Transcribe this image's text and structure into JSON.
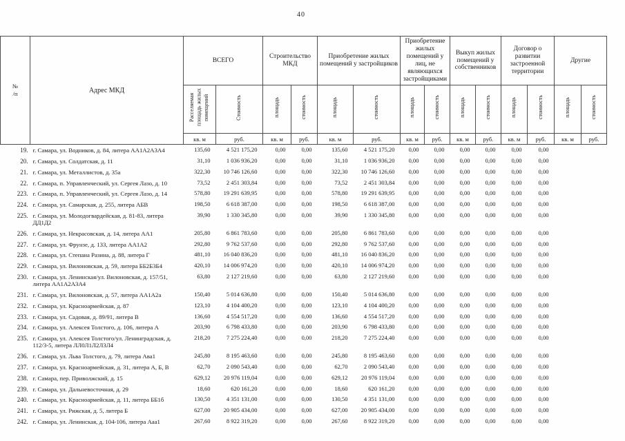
{
  "page": {
    "number": "40"
  },
  "table": {
    "headers": {
      "num": "№\n/п",
      "address": "Адрес МКД",
      "groups": [
        {
          "label": "ВСЕГО",
          "sub": [
            "Расселяемая площадь жилых помещений",
            "Стоимость"
          ]
        },
        {
          "label": "Строительство МКД",
          "sub": [
            "площадь",
            "стоимость"
          ]
        },
        {
          "label": "Приобретение жилых помещений у застройщиков",
          "sub": [
            "площадь",
            "стоимость"
          ]
        },
        {
          "label": "Приобретение жилых помещений у лиц, не являющихся застройщиками",
          "sub": [
            "площадь",
            "стоимость"
          ]
        },
        {
          "label": "Выкуп жилых помещений у собственников",
          "sub": [
            "площадь",
            "стоимость"
          ]
        },
        {
          "label": "Договор о развитии застроенной территории",
          "sub": [
            "площадь",
            "стоимость"
          ]
        },
        {
          "label": "Другие",
          "sub": [
            "площадь",
            "стоимость"
          ]
        }
      ],
      "units": [
        "кв. м",
        "руб."
      ]
    },
    "rows": [
      {
        "num": "19.",
        "address": "г. Самара, ул. Водников, д. 84, литера АА1А2А3А4",
        "values": [
          "135,60",
          "4 521 175,20",
          "0,00",
          "0,00",
          "135,60",
          "4 521 175,20",
          "0,00",
          "0,00",
          "0,00",
          "0,00",
          "0,00",
          "0,00",
          "",
          ""
        ]
      },
      {
        "num": "20.",
        "address": "г. Самара, ул. Солдатская, д. 11",
        "values": [
          "31,10",
          "1 036 936,20",
          "0,00",
          "0,00",
          "31,10",
          "1 036 936,20",
          "0,00",
          "0,00",
          "0,00",
          "0,00",
          "0,00",
          "0,00",
          "",
          ""
        ]
      },
      {
        "num": "21.",
        "address": "г. Самара, ул. Металлистов, д. 35а",
        "values": [
          "322,30",
          "10 746 126,60",
          "0,00",
          "0,00",
          "322,30",
          "10 746 126,60",
          "0,00",
          "0,00",
          "0,00",
          "0,00",
          "0,00",
          "0,00",
          "",
          ""
        ]
      },
      {
        "num": "22.",
        "address": "г. Самара, п. Управленческий, ул. Сергея Лазо, д. 10",
        "values": [
          "73,52",
          "2 451 303,84",
          "0,00",
          "0,00",
          "73,52",
          "2 451 303,84",
          "0,00",
          "0,00",
          "0,00",
          "0,00",
          "0,00",
          "0,00",
          "",
          ""
        ]
      },
      {
        "num": "223.",
        "address": "г. Самара, п. Управленческий, ул. Сергея Лазо, д. 14",
        "values": [
          "578,80",
          "19 291 639,95",
          "0,00",
          "0,00",
          "578,80",
          "19 291 639,95",
          "0,00",
          "0,00",
          "0,00",
          "0,00",
          "0,00",
          "0,00",
          "",
          ""
        ]
      },
      {
        "num": "224.",
        "address": "г. Самара, ул. Самарская, д. 255, литера АБВ",
        "values": [
          "198,50",
          "6 618 387,00",
          "0,00",
          "0,00",
          "198,50",
          "6 618 387,00",
          "0,00",
          "0,00",
          "0,00",
          "0,00",
          "0,00",
          "0,00",
          "",
          ""
        ]
      },
      {
        "num": "225.",
        "address": "г. Самара, ул. Молодогвардейская, д. 81-83, литера ДД1Д2",
        "values": [
          "39,90",
          "1 330 345,80",
          "0,00",
          "0,00",
          "39,90",
          "1 330 345,80",
          "0,00",
          "0,00",
          "0,00",
          "0,00",
          "0,00",
          "0,00",
          "",
          ""
        ]
      },
      {
        "num": "226.",
        "address": "г. Самара, ул. Некрасовская, д. 14, литера АА1",
        "values": [
          "205,80",
          "6 861 783,60",
          "0,00",
          "0,00",
          "205,80",
          "6 861 783,60",
          "0,00",
          "0,00",
          "0,00",
          "0,00",
          "0,00",
          "0,00",
          "",
          ""
        ]
      },
      {
        "num": "227.",
        "address": "г. Самара, ул. Фрунзе, д. 133, литера АА1А2",
        "values": [
          "292,80",
          "9 762 537,60",
          "0,00",
          "0,00",
          "292,80",
          "9 762 537,60",
          "0,00",
          "0,00",
          "0,00",
          "0,00",
          "0,00",
          "0,00",
          "",
          ""
        ]
      },
      {
        "num": "228.",
        "address": "г. Самара, ул. Степана Разина, д. 88, литера Г",
        "values": [
          "481,10",
          "16 040 836,20",
          "0,00",
          "0,00",
          "481,10",
          "16 040 836,20",
          "0,00",
          "0,00",
          "0,00",
          "0,00",
          "0,00",
          "0,00",
          "",
          ""
        ]
      },
      {
        "num": "229.",
        "address": "г. Самара, ул. Вилоновская, д. 59, литера ББ2Б3Б4",
        "values": [
          "420,10",
          "14 006 974,20",
          "0,00",
          "0,00",
          "420,10",
          "14 006 974,20",
          "0,00",
          "0,00",
          "0,00",
          "0,00",
          "0,00",
          "0,00",
          "",
          ""
        ]
      },
      {
        "num": "230.",
        "address": "г. Самара, ул. Ленинская/ул. Вилоновская, д. 157/51, литера АА1А2А3А4",
        "values": [
          "63,80",
          "2 127 219,60",
          "0,00",
          "0,00",
          "63,80",
          "2 127 219,60",
          "0,00",
          "0,00",
          "0,00",
          "0,00",
          "0,00",
          "0,00",
          "",
          ""
        ]
      },
      {
        "num": "231.",
        "address": "г. Самара, ул. Вилоновская, д. 57, литера АА1А2а",
        "values": [
          "150,40",
          "5 014 636,80",
          "0,00",
          "0,00",
          "150,40",
          "5 014 636,80",
          "0,00",
          "0,00",
          "0,00",
          "0,00",
          "0,00",
          "0,00",
          "",
          ""
        ]
      },
      {
        "num": "232.",
        "address": "г. Самара, ул. Красноармейская, д. 87",
        "values": [
          "123,10",
          "4 104 400,20",
          "0,00",
          "0,00",
          "123,10",
          "4 104 400,20",
          "0,00",
          "0,00",
          "0,00",
          "0,00",
          "0,00",
          "0,00",
          "",
          ""
        ]
      },
      {
        "num": "233.",
        "address": "г. Самара, ул. Садовая, д. 89/91, литера В",
        "values": [
          "136,60",
          "4 554 517,20",
          "0,00",
          "0,00",
          "136,60",
          "4 554 517,20",
          "0,00",
          "0,00",
          "0,00",
          "0,00",
          "0,00",
          "0,00",
          "",
          ""
        ]
      },
      {
        "num": "234.",
        "address": "г. Самара, ул. Алексея Толстого, д. 106, литера А",
        "values": [
          "203,90",
          "6 798 433,80",
          "0,00",
          "0,00",
          "203,90",
          "6 798 433,80",
          "0,00",
          "0,00",
          "0,00",
          "0,00",
          "0,00",
          "0,00",
          "",
          ""
        ]
      },
      {
        "num": "235.",
        "address": "г. Самара, ул. Алексея Толстого/ул. Ленинградская, д. 112/3-5, литера ЛЛ0Л1Л2Л3Л4",
        "values": [
          "218,20",
          "7 275 224,40",
          "0,00",
          "0,00",
          "218,20",
          "7 275 224,40",
          "0,00",
          "0,00",
          "0,00",
          "0,00",
          "0,00",
          "0,00",
          "",
          ""
        ]
      },
      {
        "num": "236.",
        "address": "г. Самара, ул. Льва Толстого, д. 79, литера Ава1",
        "values": [
          "245,80",
          "8 195 463,60",
          "0,00",
          "0,00",
          "245,80",
          "8 195 463,60",
          "0,00",
          "0,00",
          "0,00",
          "0,00",
          "0,00",
          "0,00",
          "",
          ""
        ]
      },
      {
        "num": "237.",
        "address": "г. Самара, ул. Красноармейская, д. 31, литера А, Б, В",
        "values": [
          "62,70",
          "2 090 543,40",
          "0,00",
          "0,00",
          "62,70",
          "2 090 543,40",
          "0,00",
          "0,00",
          "0,00",
          "0,00",
          "0,00",
          "0,00",
          "",
          ""
        ]
      },
      {
        "num": "238.",
        "address": "г. Самара, пер. Приволжский, д. 15",
        "values": [
          "629,12",
          "20 976 119,04",
          "0,00",
          "0,00",
          "629,12",
          "20 976 119,04",
          "0,00",
          "0,00",
          "0,00",
          "0,00",
          "0,00",
          "0,00",
          "",
          ""
        ]
      },
      {
        "num": "239.",
        "address": "г. Самара, ул. Дальневосточная, д. 29",
        "values": [
          "18,60",
          "620 161,20",
          "0,00",
          "0,00",
          "18,60",
          "620 161,20",
          "0,00",
          "0,00",
          "0,00",
          "0,00",
          "0,00",
          "0,00",
          "",
          ""
        ]
      },
      {
        "num": "240.",
        "address": "г. Самара, ул. Красноармейская, д. 11, литера ББ1б",
        "values": [
          "130,50",
          "4 351 131,00",
          "0,00",
          "0,00",
          "130,50",
          "4 351 131,00",
          "0,00",
          "0,00",
          "0,00",
          "0,00",
          "0,00",
          "0,00",
          "",
          ""
        ]
      },
      {
        "num": "241.",
        "address": "г. Самара, ул. Рижская, д. 5, литера Б",
        "values": [
          "627,00",
          "20 905 434,00",
          "0,00",
          "0,00",
          "627,00",
          "20 905 434,00",
          "0,00",
          "0,00",
          "0,00",
          "0,00",
          "0,00",
          "0,00",
          "",
          ""
        ]
      },
      {
        "num": "242.",
        "address": "г. Самара, ул. Ленинская, д. 104-106, литера Ааа1",
        "values": [
          "267,60",
          "8 922 319,20",
          "0,00",
          "0,00",
          "267,60",
          "8 922 319,20",
          "0,00",
          "0,00",
          "0,00",
          "0,00",
          "0,00",
          "0,00",
          "",
          ""
        ]
      }
    ]
  }
}
